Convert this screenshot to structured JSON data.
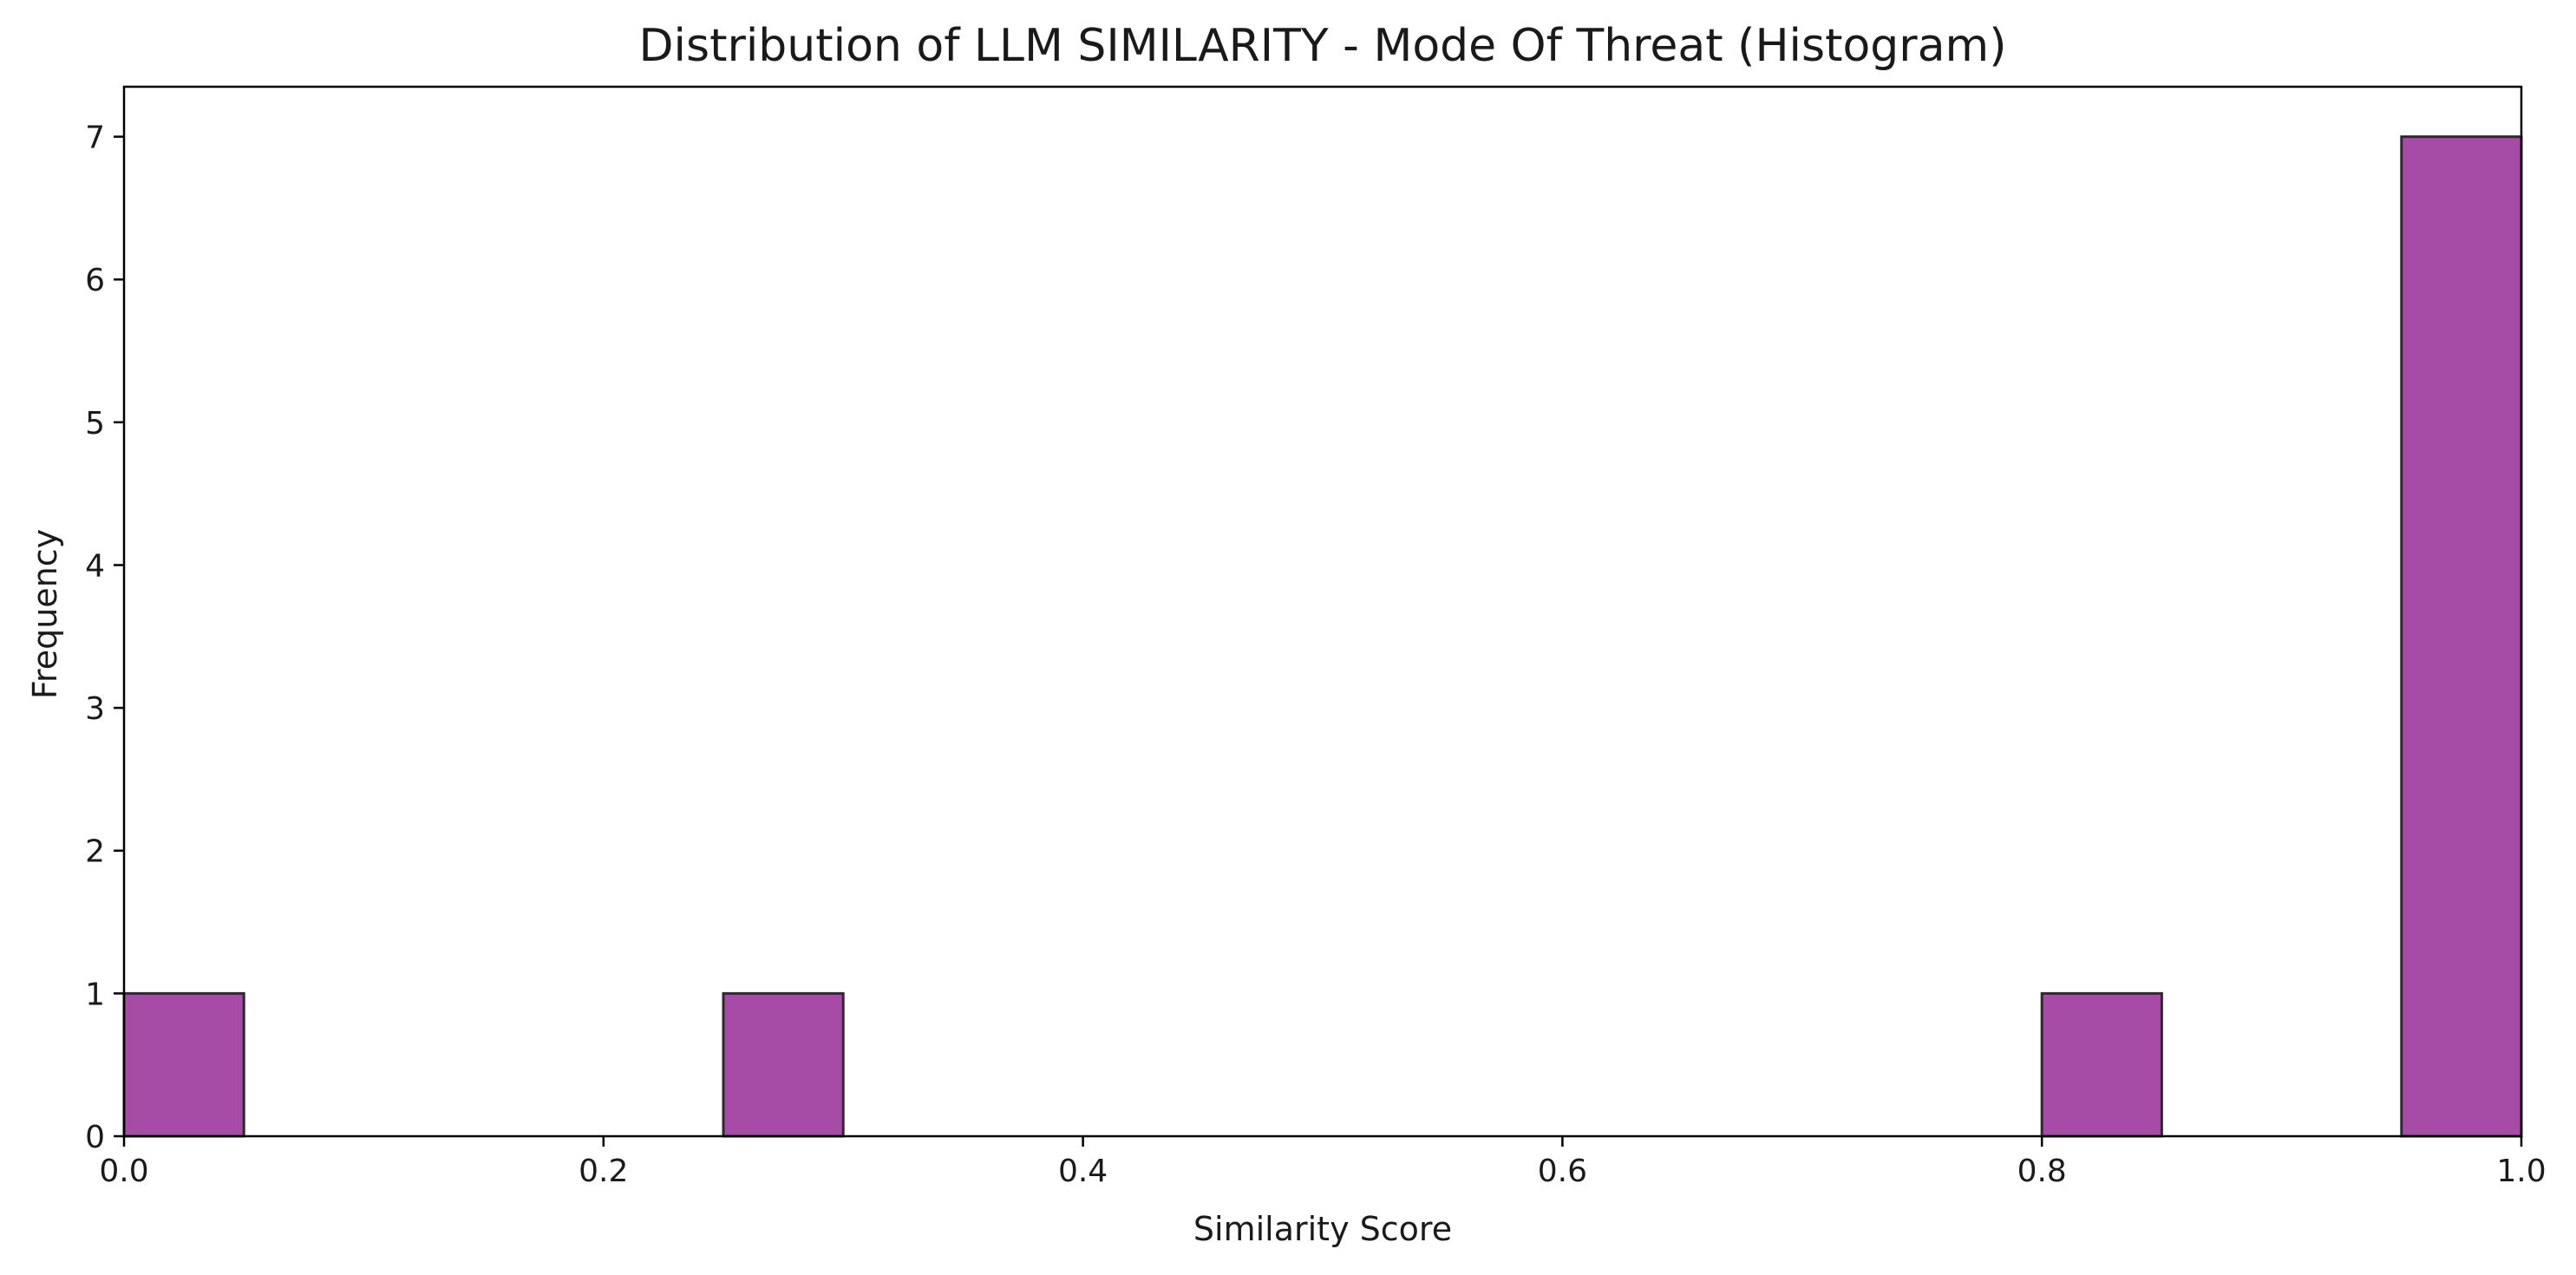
{
  "chart_data": {
    "type": "bar",
    "title": "Distribution of LLM SIMILARITY - Mode Of Threat (Histogram)",
    "xlabel": "Similarity Score",
    "ylabel": "Frequency",
    "xlim": [
      0,
      1
    ],
    "ylim": [
      0,
      7.35
    ],
    "bin_width": 0.05,
    "bins": [
      {
        "x0": 0.0,
        "x1": 0.05,
        "count": 1
      },
      {
        "x0": 0.25,
        "x1": 0.3,
        "count": 1
      },
      {
        "x0": 0.8,
        "x1": 0.85,
        "count": 1
      },
      {
        "x0": 0.95,
        "x1": 1.0,
        "count": 7
      }
    ],
    "x_ticks": [
      0.0,
      0.2,
      0.4,
      0.6,
      0.8,
      1.0
    ],
    "x_tick_labels": [
      "0.0",
      "0.2",
      "0.4",
      "0.6",
      "0.8",
      "1.0"
    ],
    "y_ticks": [
      0,
      1,
      2,
      3,
      4,
      5,
      6,
      7
    ],
    "y_tick_labels": [
      "0",
      "1",
      "2",
      "3",
      "4",
      "5",
      "6",
      "7"
    ],
    "grid": false,
    "bar_color": "#a64ca6",
    "edge_color": "#2b2b2b"
  }
}
